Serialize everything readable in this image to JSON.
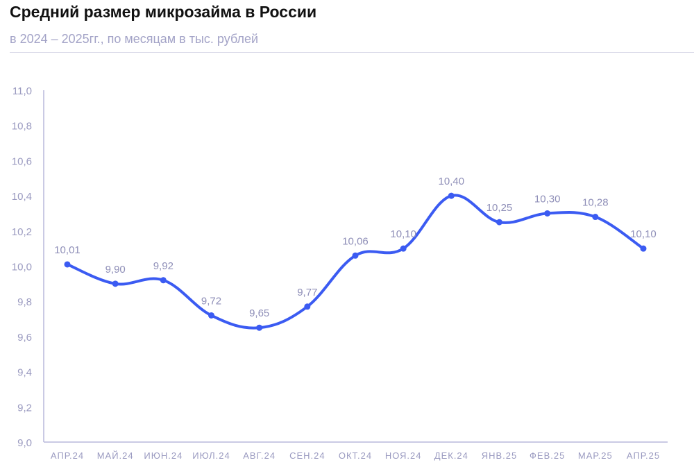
{
  "chart_data": {
    "type": "line",
    "title": "Средний размер микрозайма в России",
    "subtitle": "в 2024 – 2025гг., по месяцам в тыс. рублей",
    "categories": [
      "АПР.24",
      "МАЙ.24",
      "ИЮН.24",
      "ИЮЛ.24",
      "АВГ.24",
      "СЕН.24",
      "ОКТ.24",
      "НОЯ.24",
      "ДЕК.24",
      "ЯНВ.25",
      "ФЕВ.25",
      "МАР.25",
      "АПР.25"
    ],
    "series": [
      {
        "values": [
          10.01,
          9.9,
          9.92,
          9.72,
          9.65,
          9.77,
          10.06,
          10.1,
          10.4,
          10.25,
          10.3,
          10.28,
          10.1
        ]
      }
    ],
    "data_labels": [
      "10,01",
      "9,90",
      "9,92",
      "9,72",
      "9,65",
      "9,77",
      "10,06",
      "10,10",
      "10,40",
      "10,25",
      "10,30",
      "10,28",
      "10,10"
    ],
    "ylim": [
      9.0,
      11.0
    ],
    "yticks": [
      "9,0",
      "9,2",
      "9,4",
      "9,6",
      "9,8",
      "10,0",
      "10,2",
      "10,4",
      "10,6",
      "10,8",
      "11,0"
    ],
    "ytick_values": [
      9.0,
      9.2,
      9.4,
      9.6,
      9.8,
      10.0,
      10.2,
      10.4,
      10.6,
      10.8,
      11.0
    ],
    "xlabel": "",
    "ylabel": "",
    "grid": false,
    "line_color": "#3b5bf2",
    "axis_color": "#b8b8dc",
    "label_color": "#8f8fb8"
  }
}
